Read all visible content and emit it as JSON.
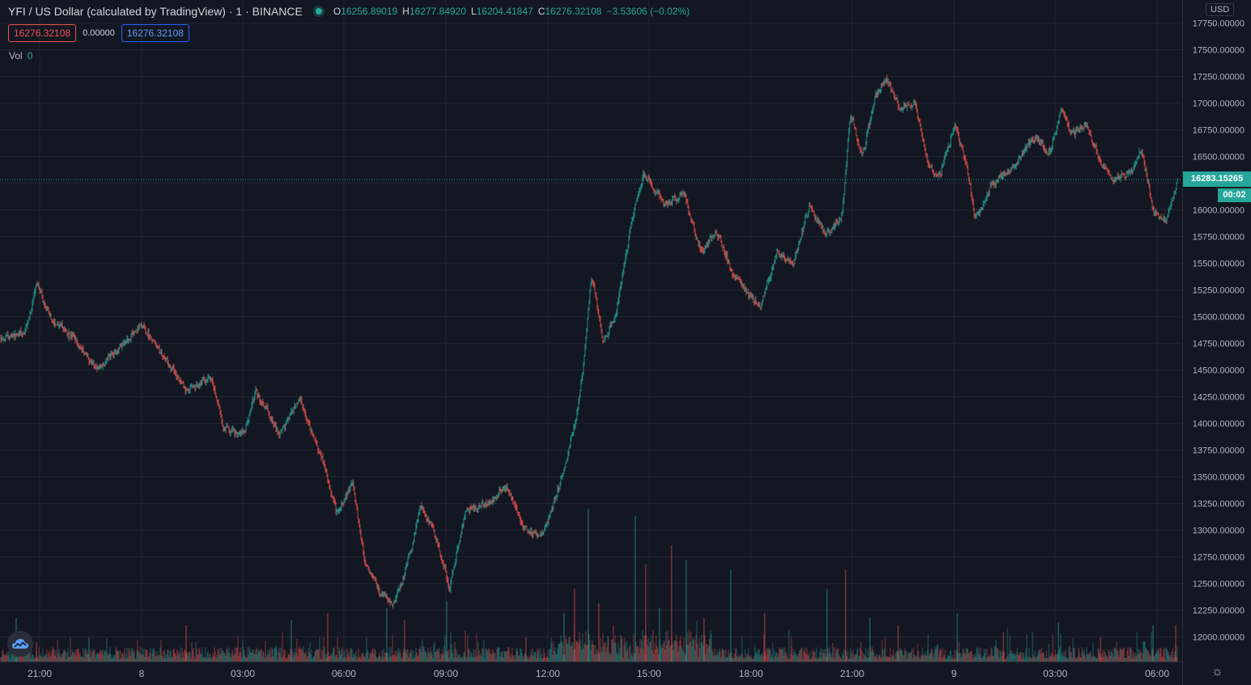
{
  "header": {
    "symbol": "YFI / US Dollar (calculated by TradingView) · 1 · BINANCE",
    "ohlc": {
      "o_label": "O",
      "o": "16256.89019",
      "h_label": "H",
      "h": "16277.84920",
      "l_label": "L",
      "l": "16204.41847",
      "c_label": "C",
      "c": "16276.32108",
      "change": "−3.53606 (−0.02%)"
    },
    "bid": "16276.32108",
    "spread": "0.00000",
    "ask": "16276.32108"
  },
  "volume": {
    "label": "Vol",
    "value": "0"
  },
  "currency": "USD",
  "last_price": "16283.15265",
  "countdown": "00:02",
  "colors": {
    "background": "#131722",
    "up": "#26a69a",
    "down": "#ef5350",
    "grid": "#1f2330",
    "text": "#b2b5be"
  },
  "chart_data": {
    "type": "candlestick",
    "x_ticks": [
      "21:00",
      "8",
      "03:00",
      "06:00",
      "09:00",
      "12:00",
      "15:00",
      "18:00",
      "21:00",
      "9",
      "03:00",
      "06:00"
    ],
    "y_ticks": [
      "17750.00000",
      "17500.00000",
      "17250.00000",
      "17000.00000",
      "16750.00000",
      "16500.00000",
      "16250.00000",
      "16000.00000",
      "15750.00000",
      "15500.00000",
      "15250.00000",
      "15000.00000",
      "14750.00000",
      "14500.00000",
      "14250.00000",
      "14000.00000",
      "13750.00000",
      "13500.00000",
      "13250.00000",
      "13000.00000",
      "12750.00000",
      "12500.00000",
      "12250.00000",
      "12000.00000"
    ],
    "ylim": [
      11880,
      17850
    ],
    "grid": true,
    "last_price": 16283.15265,
    "price_path": [
      [
        0,
        14800
      ],
      [
        30,
        14850
      ],
      [
        45,
        15300
      ],
      [
        60,
        15000
      ],
      [
        90,
        14800
      ],
      [
        120,
        14500
      ],
      [
        150,
        14750
      ],
      [
        175,
        14920
      ],
      [
        200,
        14650
      ],
      [
        230,
        14300
      ],
      [
        260,
        14450
      ],
      [
        275,
        13950
      ],
      [
        300,
        13900
      ],
      [
        315,
        14300
      ],
      [
        345,
        13900
      ],
      [
        370,
        14200
      ],
      [
        385,
        13900
      ],
      [
        400,
        13600
      ],
      [
        415,
        13150
      ],
      [
        435,
        13450
      ],
      [
        450,
        12700
      ],
      [
        470,
        12400
      ],
      [
        485,
        12300
      ],
      [
        500,
        12600
      ],
      [
        520,
        13250
      ],
      [
        540,
        12900
      ],
      [
        555,
        12450
      ],
      [
        575,
        13200
      ],
      [
        600,
        13250
      ],
      [
        625,
        13400
      ],
      [
        650,
        13000
      ],
      [
        670,
        12950
      ],
      [
        690,
        13400
      ],
      [
        710,
        14000
      ],
      [
        720,
        14500
      ],
      [
        730,
        15400
      ],
      [
        745,
        14750
      ],
      [
        760,
        15000
      ],
      [
        780,
        15900
      ],
      [
        795,
        16350
      ],
      [
        820,
        16050
      ],
      [
        845,
        16150
      ],
      [
        865,
        15600
      ],
      [
        885,
        15800
      ],
      [
        905,
        15400
      ],
      [
        925,
        15200
      ],
      [
        940,
        15100
      ],
      [
        960,
        15600
      ],
      [
        980,
        15500
      ],
      [
        1000,
        16050
      ],
      [
        1020,
        15750
      ],
      [
        1040,
        15950
      ],
      [
        1050,
        16900
      ],
      [
        1065,
        16500
      ],
      [
        1080,
        17050
      ],
      [
        1095,
        17250
      ],
      [
        1110,
        16950
      ],
      [
        1130,
        17000
      ],
      [
        1145,
        16450
      ],
      [
        1160,
        16300
      ],
      [
        1180,
        16800
      ],
      [
        1195,
        16350
      ],
      [
        1205,
        15900
      ],
      [
        1225,
        16250
      ],
      [
        1250,
        16400
      ],
      [
        1280,
        16700
      ],
      [
        1295,
        16500
      ],
      [
        1310,
        16950
      ],
      [
        1325,
        16700
      ],
      [
        1340,
        16800
      ],
      [
        1360,
        16450
      ],
      [
        1375,
        16300
      ],
      [
        1395,
        16350
      ],
      [
        1410,
        16550
      ],
      [
        1425,
        16000
      ],
      [
        1440,
        15900
      ],
      [
        1455,
        16283
      ]
    ],
    "volume_peaks": [
      [
        20,
        0.18
      ],
      [
        45,
        0.08
      ],
      [
        110,
        0.1
      ],
      [
        230,
        0.15
      ],
      [
        360,
        0.17
      ],
      [
        405,
        0.2
      ],
      [
        478,
        0.22
      ],
      [
        500,
        0.17
      ],
      [
        552,
        0.25
      ],
      [
        650,
        0.1
      ],
      [
        697,
        0.2
      ],
      [
        710,
        0.3
      ],
      [
        727,
        0.63
      ],
      [
        740,
        0.24
      ],
      [
        785,
        0.6
      ],
      [
        798,
        0.4
      ],
      [
        815,
        0.22
      ],
      [
        830,
        0.48
      ],
      [
        848,
        0.42
      ],
      [
        870,
        0.18
      ],
      [
        903,
        0.38
      ],
      [
        945,
        0.2
      ],
      [
        1022,
        0.3
      ],
      [
        1045,
        0.38
      ],
      [
        1075,
        0.18
      ],
      [
        1110,
        0.15
      ],
      [
        1183,
        0.2
      ],
      [
        1240,
        0.12
      ],
      [
        1308,
        0.16
      ],
      [
        1360,
        0.1
      ],
      [
        1425,
        0.15
      ],
      [
        1453,
        0.15
      ]
    ]
  }
}
